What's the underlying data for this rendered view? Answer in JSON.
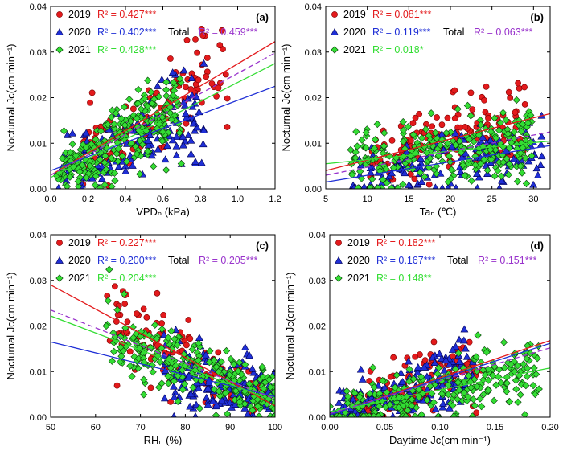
{
  "figure": {
    "y_axis_title": "Nocturnal Jc(cm min⁻¹)"
  },
  "colors": {
    "2019": "#e31a1c",
    "2020": "#1f2fd6",
    "2021": "#33dd33",
    "total": "#9933cc"
  },
  "chart_data": [
    {
      "id": "a",
      "type": "scatter",
      "panel_label": "(a)",
      "xlabel": "VPDₙ (kPa)",
      "ylabel": "Nocturnal Jc(cm min⁻¹)",
      "xlim": [
        0.0,
        1.2
      ],
      "ylim": [
        0.0,
        0.04
      ],
      "xticks": [
        0.0,
        0.2,
        0.4,
        0.6,
        0.8,
        1.0,
        1.2
      ],
      "xtick_labels": [
        "0.0",
        "0.2",
        "0.4",
        "0.6",
        "0.8",
        "1.0",
        "1.2"
      ],
      "yticks": [
        0.0,
        0.01,
        0.02,
        0.03,
        0.04
      ],
      "ytick_labels": [
        "0.00",
        "0.01",
        "0.02",
        "0.03",
        "0.04"
      ],
      "series": [
        {
          "name": "2019",
          "r2": "R² = 0.427***",
          "line": [
            [
              0.0,
              0.003
            ],
            [
              1.2,
              0.0323
            ]
          ],
          "cloud": {
            "n": 130,
            "x": [
              0.15,
              0.95
            ],
            "seed": 11
          }
        },
        {
          "name": "2020",
          "r2": "R² = 0.402***",
          "line": [
            [
              0.0,
              0.004
            ],
            [
              1.2,
              0.0225
            ]
          ],
          "cloud": {
            "n": 170,
            "x": [
              0.03,
              0.82
            ],
            "seed": 23
          }
        },
        {
          "name": "2021",
          "r2": "R² = 0.428***",
          "line": [
            [
              0.0,
              0.0025
            ],
            [
              1.2,
              0.0275
            ]
          ],
          "cloud": {
            "n": 260,
            "x": [
              0.02,
              0.7
            ],
            "seed": 37
          }
        }
      ],
      "total": {
        "name": "Total",
        "r2": "R² = 0.459***",
        "line": [
          [
            0.0,
            0.003
          ],
          [
            1.2,
            0.0298
          ]
        ]
      }
    },
    {
      "id": "b",
      "type": "scatter",
      "panel_label": "(b)",
      "xlabel": "Taₙ (℃)",
      "ylabel": "Nocturnal Jc(cm min⁻¹)",
      "xlim": [
        5,
        32
      ],
      "ylim": [
        0.0,
        0.04
      ],
      "xticks": [
        5,
        10,
        15,
        20,
        25,
        30
      ],
      "xtick_labels": [
        "5",
        "10",
        "15",
        "20",
        "25",
        "30"
      ],
      "yticks": [
        0.0,
        0.01,
        0.02,
        0.03,
        0.04
      ],
      "ytick_labels": [
        "0.00",
        "0.01",
        "0.02",
        "0.03",
        "0.04"
      ],
      "series": [
        {
          "name": "2019",
          "r2": "R² = 0.081***",
          "line": [
            [
              5,
              0.004
            ],
            [
              32,
              0.0165
            ]
          ],
          "cloud": {
            "n": 140,
            "x": [
              10,
              29
            ],
            "seed": 41
          }
        },
        {
          "name": "2020",
          "r2": "R² = 0.119***",
          "line": [
            [
              5,
              0.0015
            ],
            [
              32,
              0.0095
            ]
          ],
          "cloud": {
            "n": 170,
            "x": [
              8,
              31
            ],
            "seed": 53
          }
        },
        {
          "name": "2021",
          "r2": "R² = 0.018*",
          "line": [
            [
              5,
              0.0055
            ],
            [
              32,
              0.0105
            ]
          ],
          "cloud": {
            "n": 260,
            "x": [
              8,
              30
            ],
            "seed": 67
          }
        }
      ],
      "total": {
        "name": "Total",
        "r2": "R² = 0.063***",
        "line": [
          [
            5,
            0.003
          ],
          [
            32,
            0.0125
          ]
        ]
      }
    },
    {
      "id": "c",
      "type": "scatter",
      "panel_label": "(c)",
      "xlabel": "RHₙ (%)",
      "ylabel": "Nocturnal Jc(cm min⁻¹)",
      "xlim": [
        50,
        100
      ],
      "ylim": [
        0.0,
        0.04
      ],
      "xticks": [
        50,
        60,
        70,
        80,
        90,
        100
      ],
      "xtick_labels": [
        "50",
        "60",
        "70",
        "80",
        "90",
        "100"
      ],
      "yticks": [
        0.0,
        0.01,
        0.02,
        0.03,
        0.04
      ],
      "ytick_labels": [
        "0.00",
        "0.01",
        "0.02",
        "0.03",
        "0.04"
      ],
      "series": [
        {
          "name": "2019",
          "r2": "R² = 0.227***",
          "line": [
            [
              50,
              0.029
            ],
            [
              100,
              0.0025
            ]
          ],
          "cloud": {
            "n": 130,
            "x": [
              62,
              98
            ],
            "seed": 71
          }
        },
        {
          "name": "2020",
          "r2": "R² = 0.200***",
          "line": [
            [
              50,
              0.0165
            ],
            [
              100,
              0.0045
            ]
          ],
          "cloud": {
            "n": 170,
            "x": [
              75,
              100
            ],
            "seed": 83
          }
        },
        {
          "name": "2021",
          "r2": "R² = 0.204***",
          "line": [
            [
              50,
              0.0222
            ],
            [
              100,
              0.0035
            ]
          ],
          "cloud": {
            "n": 260,
            "x": [
              62,
              100
            ],
            "seed": 97
          }
        }
      ],
      "total": {
        "name": "Total",
        "r2": "R² = 0.205***",
        "line": [
          [
            50,
            0.0235
          ],
          [
            100,
            0.004
          ]
        ]
      }
    },
    {
      "id": "d",
      "type": "scatter",
      "panel_label": "(d)",
      "xlabel": "Daytime Jc(cm min⁻¹)",
      "ylabel": "Nocturnal Jc(cm min⁻¹)",
      "xlim": [
        0.0,
        0.2
      ],
      "ylim": [
        0.0,
        0.04
      ],
      "xticks": [
        0.0,
        0.05,
        0.1,
        0.15,
        0.2
      ],
      "xtick_labels": [
        "0.00",
        "0.05",
        "0.10",
        "0.15",
        "0.20"
      ],
      "yticks": [
        0.0,
        0.01,
        0.02,
        0.03,
        0.04
      ],
      "ytick_labels": [
        "0.00",
        "0.01",
        "0.02",
        "0.03",
        "0.04"
      ],
      "series": [
        {
          "name": "2019",
          "r2": "R² = 0.182***",
          "line": [
            [
              0.0,
              0.0005
            ],
            [
              0.2,
              0.0168
            ]
          ],
          "cloud": {
            "n": 130,
            "x": [
              0.02,
              0.14
            ],
            "seed": 101
          }
        },
        {
          "name": "2020",
          "r2": "R² = 0.167***",
          "line": [
            [
              0.0,
              0.0005
            ],
            [
              0.2,
              0.0162
            ]
          ],
          "cloud": {
            "n": 170,
            "x": [
              0.0,
              0.13
            ],
            "seed": 113
          }
        },
        {
          "name": "2021",
          "r2": "R² = 0.148**",
          "line": [
            [
              0.0,
              0.0012
            ],
            [
              0.2,
              0.0108
            ]
          ],
          "cloud": {
            "n": 260,
            "x": [
              0.0,
              0.19
            ],
            "seed": 127
          }
        }
      ],
      "total": {
        "name": "Total",
        "r2": "R² = 0.151***",
        "line": [
          [
            0.0,
            0.0008
          ],
          [
            0.2,
            0.0152
          ]
        ]
      }
    }
  ]
}
